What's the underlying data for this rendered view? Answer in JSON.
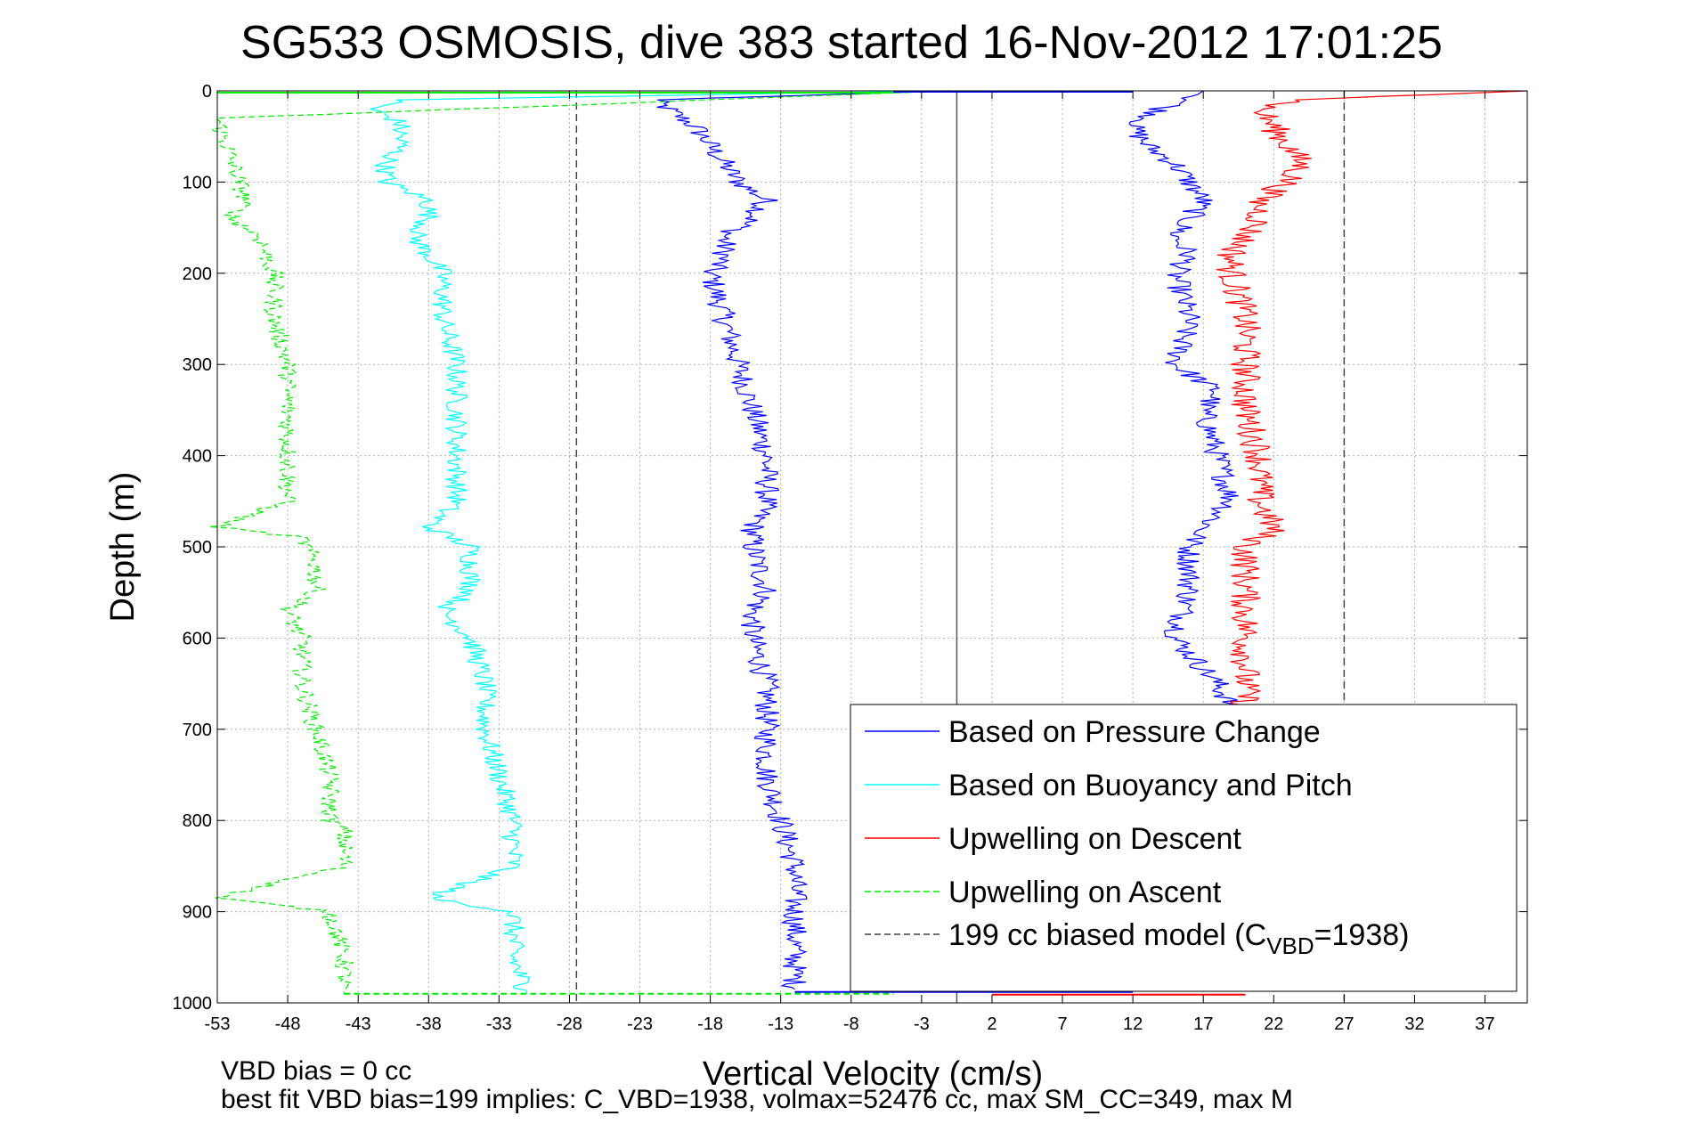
{
  "chart_data": {
    "type": "line",
    "title": "SG533 OSMOSIS, dive 383 started 16-Nov-2012 17:01:25",
    "xlabel": "Vertical Velocity (cm/s)",
    "ylabel": "Depth (m)",
    "xlim": [
      -53,
      40
    ],
    "ylim": [
      1000,
      0
    ],
    "y_reversed": true,
    "grid": true,
    "x_ticks": [
      -53,
      -48,
      -43,
      -38,
      -33,
      -28,
      -23,
      -18,
      -13,
      -8,
      -3,
      2,
      7,
      12,
      17,
      22,
      27,
      32,
      37
    ],
    "y_ticks": [
      0,
      100,
      200,
      300,
      400,
      500,
      600,
      700,
      800,
      900,
      1000
    ],
    "legend_position": "bottom-right",
    "series": [
      {
        "name": "Based on Pressure Change",
        "color": "#0000ff",
        "line_style": "solid",
        "depth": [
          0,
          10,
          20,
          40,
          60,
          80,
          100,
          120,
          140,
          160,
          180,
          200,
          250,
          300,
          350,
          400,
          450,
          480,
          500,
          550,
          570,
          600,
          650,
          700,
          750,
          800,
          850,
          900,
          950,
          985
        ],
        "velocity": [
          -1,
          -22,
          -21,
          -19,
          -18,
          -17,
          -16,
          -14,
          -15,
          -17,
          -17,
          -18,
          -17,
          -16,
          -15,
          -14,
          -14,
          -15,
          -15,
          -14,
          -15,
          -15,
          -14,
          -14,
          -14,
          -13,
          -12,
          -12,
          -12,
          -12
        ],
        "dive_segment": {
          "depth": [
            0,
            10,
            20,
            40,
            60,
            80,
            100,
            120,
            140,
            160,
            180,
            200,
            250,
            300,
            330,
            350,
            400,
            450,
            480,
            500,
            550,
            600,
            650,
            700,
            985
          ],
          "velocity": [
            17,
            16,
            14,
            12,
            13,
            15,
            16,
            17,
            16,
            15,
            16,
            15,
            16,
            15,
            18,
            17,
            18,
            19,
            17,
            16,
            16,
            15,
            18,
            20,
            20
          ]
        }
      },
      {
        "name": "Based on Buoyancy and Pitch",
        "color": "#00ffff",
        "line_style": "solid",
        "depth": [
          0,
          10,
          20,
          35,
          60,
          80,
          100,
          120,
          140,
          160,
          200,
          250,
          300,
          350,
          400,
          450,
          478,
          500,
          550,
          570,
          600,
          650,
          700,
          750,
          800,
          850,
          885,
          900,
          950,
          990
        ],
        "velocity": [
          -2,
          -40,
          -42,
          -40,
          -40,
          -41,
          -41,
          -38,
          -38,
          -39,
          -37,
          -37,
          -36,
          -36,
          -36,
          -36,
          -38,
          -35,
          -35,
          -37,
          -35,
          -34,
          -34,
          -33,
          -32,
          -32,
          -38,
          -32,
          -32,
          -31
        ]
      },
      {
        "name": "Upwelling on Descent",
        "color": "#ff0000",
        "line_style": "solid",
        "depth": [
          0,
          10,
          20,
          40,
          60,
          80,
          100,
          120,
          140,
          160,
          180,
          200,
          250,
          300,
          350,
          400,
          450,
          480,
          500,
          550,
          600,
          650,
          680
        ],
        "velocity": [
          40,
          24,
          21,
          22,
          23,
          24,
          23,
          21,
          21,
          20,
          19,
          19,
          20,
          20,
          20,
          21,
          21,
          22,
          20,
          20,
          20,
          20,
          20
        ]
      },
      {
        "name": "Upwelling on Ascent",
        "color": "#00ee00",
        "line_style": "dashed",
        "depth": [
          0,
          30,
          120,
          140,
          160,
          200,
          250,
          300,
          350,
          400,
          450,
          478,
          490,
          520,
          550,
          570,
          600,
          650,
          700,
          750,
          800,
          810,
          850,
          885,
          900,
          950,
          990
        ],
        "velocity": [
          -1,
          -53,
          -51,
          -52,
          -50,
          -49,
          -49,
          -48,
          -48,
          -48,
          -48,
          -53,
          -47,
          -46,
          -46,
          -48,
          -47,
          -47,
          -46,
          -45,
          -45,
          -44,
          -44,
          -53,
          -45,
          -44,
          -44
        ]
      },
      {
        "name": "199 cc biased model (C",
        "name_subscript": "VBD",
        "name_suffix": "=1938)",
        "color": "#000000",
        "line_style": "dashed",
        "vertical_x": [
          -27.5,
          27
        ]
      }
    ],
    "zero_line_x": -0.5,
    "annotations": [
      "VBD bias = 0 cc",
      "best fit VBD bias=199 implies: C_VBD=1938, volmax=52476 cc, max SM_CC=349, max M"
    ]
  }
}
